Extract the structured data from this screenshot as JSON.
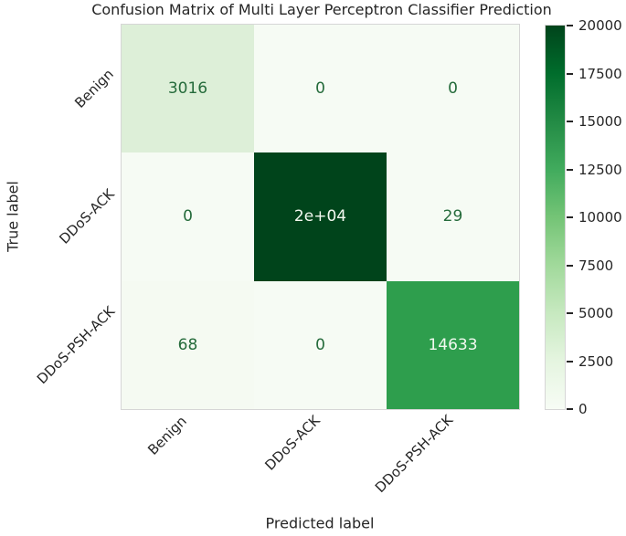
{
  "chart_data": {
    "type": "heatmap",
    "title": "Confusion Matrix of Multi Layer Perceptron Classifier Prediction",
    "xlabel": "Predicted label",
    "ylabel": "True label",
    "categories": [
      "Benign",
      "DDoS-ACK",
      "DDoS-PSH-ACK"
    ],
    "matrix": [
      [
        3016,
        0,
        0
      ],
      [
        0,
        20000,
        29
      ],
      [
        68,
        0,
        14633
      ]
    ],
    "cell_labels": [
      [
        "3016",
        "0",
        "0"
      ],
      [
        "0",
        "2e+04",
        "29"
      ],
      [
        "68",
        "0",
        "14633"
      ]
    ],
    "colormap": "Greens",
    "grid": false,
    "legend_position": "right-colorbar",
    "colorbar": {
      "min": 0,
      "max": 20000,
      "ticks": [
        20000,
        17500,
        15000,
        12500,
        10000,
        7500,
        5000,
        2500,
        0
      ]
    },
    "colors": {
      "cell_colors": [
        [
          "#ddefd8",
          "#f6fbf4",
          "#f6fbf4"
        ],
        [
          "#f6fbf4",
          "#00441b",
          "#f6fbf4"
        ],
        [
          "#f5faf2",
          "#f6fbf4",
          "#2e9e4d"
        ]
      ],
      "cell_text_colors": [
        [
          "#256b3b",
          "#256b3b",
          "#256b3b"
        ],
        [
          "#256b3b",
          "#f2f9f0",
          "#256b3b"
        ],
        [
          "#256b3b",
          "#256b3b",
          "#f2f9f0"
        ]
      ],
      "gradient_stops": [
        "#00441b",
        "#006d2c",
        "#238b45",
        "#41ab5d",
        "#74c476",
        "#a1d99b",
        "#c7e9c0",
        "#e5f5e0",
        "#f7fcf5"
      ],
      "tick_color": "#262626",
      "background": "#ffffff"
    }
  }
}
